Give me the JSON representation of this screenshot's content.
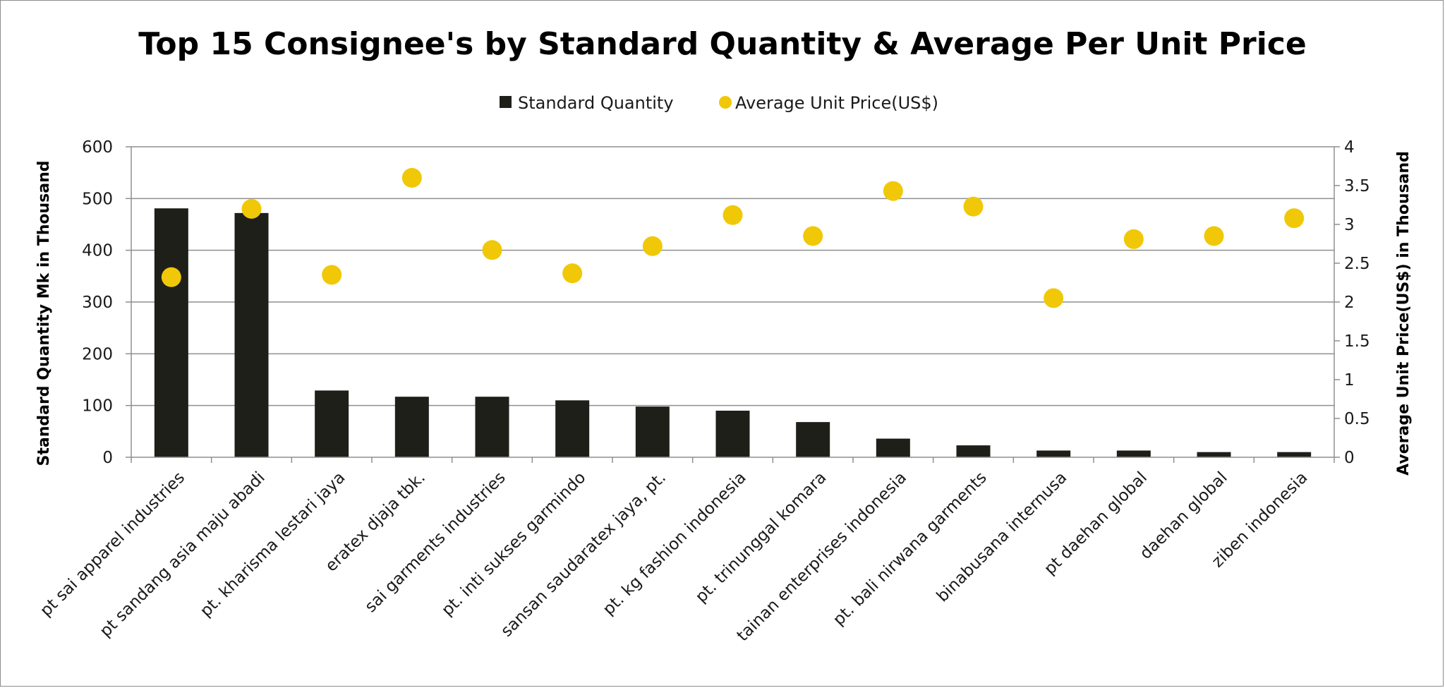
{
  "chart_data": {
    "type": "bar",
    "title": "Top 15 Consignee's by Standard Quantity & Average Per Unit Price",
    "categories": [
      "pt sai apparel industries",
      "pt sandang asia maju abadi",
      "pt. kharisma lestari jaya",
      "eratex djaja tbk.",
      "sai garments industries",
      "pt. inti sukses garmindo",
      "sansan saudaratex jaya, pt.",
      "pt. kg fashion indonesia",
      "pt. trinunggal komara",
      "tainan enterprises indonesia",
      "pt. bali nirwana garments",
      "binabusana internusa",
      "pt daehan global",
      "daehan global",
      "ziben indonesia"
    ],
    "series": [
      {
        "name": "Standard Quantity",
        "type": "bar",
        "axis": "left",
        "color": "#1f1f1a",
        "values": [
          481,
          472,
          129,
          117,
          117,
          110,
          98,
          90,
          68,
          36,
          23,
          13,
          13,
          10,
          10
        ]
      },
      {
        "name": "Average Unit Price(US$)",
        "type": "scatter",
        "axis": "right",
        "color": "#f0c808",
        "values": [
          2.32,
          3.2,
          2.35,
          3.6,
          2.67,
          2.37,
          2.72,
          3.12,
          2.85,
          3.43,
          3.23,
          2.05,
          2.81,
          2.85,
          3.08
        ]
      }
    ],
    "ylabel": "Standard Quantity Mk in Thousand",
    "ylabel_right": "Average Unit Price(US$) in Thousand",
    "ylim": [
      0,
      600
    ],
    "ylim_right": [
      0,
      4
    ],
    "yticks": [
      "0",
      "100",
      "200",
      "300",
      "400",
      "500",
      "600"
    ],
    "yticks_right": [
      "0",
      "0.5",
      "1",
      "1.5",
      "2",
      "2.5",
      "3",
      "3.5",
      "4"
    ],
    "grid": true,
    "legend_position": "top-center"
  }
}
